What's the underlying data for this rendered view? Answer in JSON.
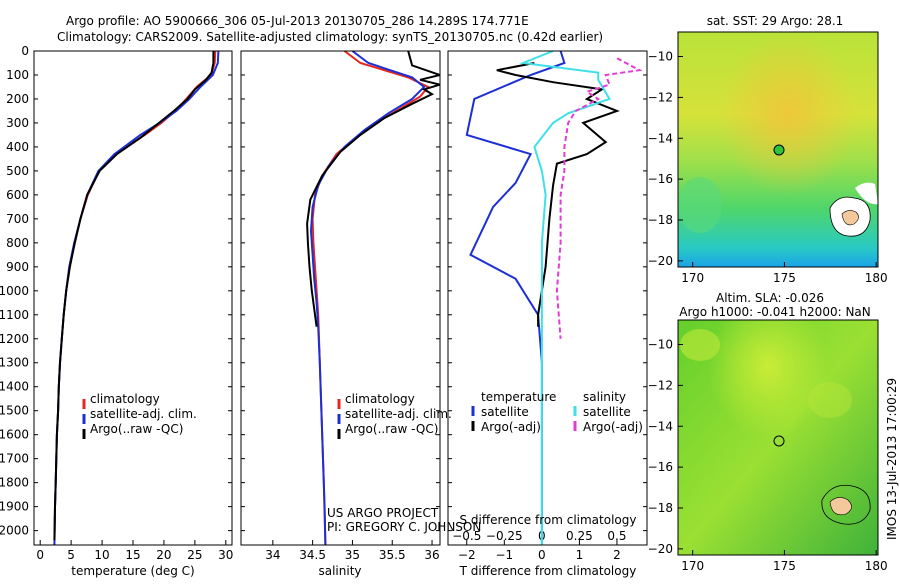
{
  "header": {
    "line1": "Argo profile: AO 5900666_306 05-Jul-2013 20130705_286 14.289S 174.771E",
    "line2": "Climatology: CARS2009. Satellite-adjusted climatology: synTS_20130705.nc (0.42d earlier)"
  },
  "colors": {
    "red": "#e8261e",
    "blue": "#1c2fd6",
    "black": "#000000",
    "cyan": "#3fe0e8",
    "magenta": "#e23bd6"
  },
  "chart_data": [
    {
      "type": "line",
      "id": "temperature",
      "xlabel": "temperature (deg C)",
      "xlim": [
        -1,
        31
      ],
      "ylim": [
        0,
        2060
      ],
      "xticks": [
        "0",
        "5",
        "10",
        "15",
        "20",
        "25",
        "30"
      ],
      "yticks": [
        "0",
        "100",
        "200",
        "300",
        "400",
        "500",
        "600",
        "700",
        "800",
        "900",
        "1000",
        "1100",
        "1200",
        "1300",
        "1400",
        "1500",
        "1600",
        "1700",
        "1800",
        "1900",
        "2000"
      ],
      "legend": [
        "climatology",
        "satellite-adj. clim.",
        "Argo(..raw -QC)"
      ],
      "series": [
        {
          "name": "climatology",
          "color": "red",
          "pts": [
            [
              28.3,
              0
            ],
            [
              28.2,
              50
            ],
            [
              27.6,
              100
            ],
            [
              25.3,
              150
            ],
            [
              23.6,
              200
            ],
            [
              21.8,
              250
            ],
            [
              19.6,
              300
            ],
            [
              16.9,
              350
            ],
            [
              12.3,
              430
            ],
            [
              9.5,
              500
            ],
            [
              7.7,
              600
            ],
            [
              6.5,
              700
            ],
            [
              5.6,
              800
            ],
            [
              4.7,
              900
            ],
            [
              4.2,
              1000
            ],
            [
              3.8,
              1100
            ],
            [
              3.5,
              1200
            ],
            [
              3.2,
              1300
            ],
            [
              3.0,
              1400
            ],
            [
              2.9,
              1500
            ],
            [
              2.7,
              1600
            ],
            [
              2.6,
              1700
            ],
            [
              2.5,
              1800
            ],
            [
              2.4,
              1900
            ],
            [
              2.3,
              2060
            ]
          ]
        },
        {
          "name": "satellite-adj. clim.",
          "color": "blue",
          "pts": [
            [
              28.8,
              0
            ],
            [
              28.7,
              50
            ],
            [
              27.9,
              100
            ],
            [
              25.9,
              150
            ],
            [
              24.1,
              200
            ],
            [
              22.0,
              250
            ],
            [
              19.3,
              300
            ],
            [
              16.2,
              350
            ],
            [
              12.0,
              430
            ],
            [
              9.4,
              500
            ],
            [
              7.6,
              600
            ],
            [
              6.5,
              700
            ],
            [
              5.5,
              800
            ],
            [
              4.7,
              900
            ],
            [
              4.2,
              1000
            ],
            [
              3.8,
              1100
            ],
            [
              3.5,
              1200
            ],
            [
              3.2,
              1300
            ],
            [
              3.0,
              1400
            ],
            [
              2.9,
              1500
            ],
            [
              2.7,
              1600
            ],
            [
              2.6,
              1700
            ],
            [
              2.5,
              1800
            ],
            [
              2.4,
              1900
            ],
            [
              2.3,
              2060
            ]
          ]
        },
        {
          "name": "Argo",
          "color": "black",
          "pts": [
            [
              28.0,
              0
            ],
            [
              28.0,
              50
            ],
            [
              27.7,
              90
            ],
            [
              26.8,
              120
            ],
            [
              25.0,
              160
            ],
            [
              23.8,
              200
            ],
            [
              21.6,
              250
            ],
            [
              19.2,
              300
            ],
            [
              16.3,
              360
            ],
            [
              12.4,
              430
            ],
            [
              9.6,
              500
            ],
            [
              7.6,
              600
            ],
            [
              6.5,
              700
            ],
            [
              5.6,
              800
            ],
            [
              4.8,
              900
            ],
            [
              4.2,
              1000
            ],
            [
              3.8,
              1100
            ],
            [
              3.5,
              1200
            ],
            [
              3.2,
              1300
            ],
            [
              3.0,
              1400
            ],
            [
              2.9,
              1500
            ],
            [
              2.7,
              1600
            ],
            [
              2.6,
              1700
            ],
            [
              2.5,
              1800
            ],
            [
              2.4,
              1900
            ],
            [
              2.3,
              2040
            ]
          ]
        }
      ]
    },
    {
      "type": "line",
      "id": "salinity",
      "xlabel": "salinity",
      "xlim": [
        33.6,
        36.1
      ],
      "ylim": [
        0,
        2060
      ],
      "xticks": [
        "34",
        "34.5",
        "35",
        "35.5",
        "36"
      ],
      "legend": [
        "climatology",
        "satellite-adj. clim.",
        "Argo(..raw -QC)"
      ],
      "series": [
        {
          "name": "climatology",
          "color": "red",
          "pts": [
            [
              34.9,
              0
            ],
            [
              35.1,
              50
            ],
            [
              35.7,
              110
            ],
            [
              35.95,
              150
            ],
            [
              35.85,
              190
            ],
            [
              35.6,
              240
            ],
            [
              35.3,
              300
            ],
            [
              35.05,
              360
            ],
            [
              34.8,
              430
            ],
            [
              34.62,
              520
            ],
            [
              34.53,
              600
            ],
            [
              34.5,
              700
            ],
            [
              34.51,
              800
            ],
            [
              34.53,
              900
            ],
            [
              34.55,
              1000
            ],
            [
              34.57,
              1100
            ],
            [
              34.58,
              1200
            ],
            [
              34.6,
              1400
            ],
            [
              34.62,
              1600
            ],
            [
              34.64,
              1800
            ],
            [
              34.66,
              2060
            ]
          ]
        },
        {
          "name": "satellite-adj. clim.",
          "color": "blue",
          "pts": [
            [
              35.0,
              0
            ],
            [
              35.2,
              50
            ],
            [
              35.75,
              110
            ],
            [
              35.9,
              150
            ],
            [
              35.75,
              200
            ],
            [
              35.45,
              260
            ],
            [
              35.15,
              330
            ],
            [
              34.9,
              400
            ],
            [
              34.7,
              480
            ],
            [
              34.57,
              560
            ],
            [
              34.5,
              650
            ],
            [
              34.48,
              750
            ],
            [
              34.5,
              850
            ],
            [
              34.52,
              950
            ],
            [
              34.55,
              1050
            ],
            [
              34.57,
              1150
            ],
            [
              34.59,
              1300
            ],
            [
              34.61,
              1500
            ],
            [
              34.63,
              1700
            ],
            [
              34.65,
              1900
            ],
            [
              34.66,
              2060
            ]
          ]
        },
        {
          "name": "Argo",
          "color": "black",
          "pts": [
            [
              35.7,
              0
            ],
            [
              35.75,
              60
            ],
            [
              36.1,
              100
            ],
            [
              35.85,
              120
            ],
            [
              36.1,
              140
            ],
            [
              35.9,
              160
            ],
            [
              36.0,
              180
            ],
            [
              35.75,
              220
            ],
            [
              35.4,
              280
            ],
            [
              35.1,
              350
            ],
            [
              34.85,
              420
            ],
            [
              34.62,
              520
            ],
            [
              34.47,
              620
            ],
            [
              34.43,
              720
            ],
            [
              34.44,
              800
            ],
            [
              34.46,
              900
            ],
            [
              34.49,
              1000
            ],
            [
              34.53,
              1100
            ],
            [
              34.55,
              1150
            ]
          ]
        }
      ]
    },
    {
      "type": "line",
      "id": "difference",
      "xlabel": "T difference from climatology",
      "xlabel_top": "S difference from climatology",
      "xlim": [
        -2.5,
        2.8
      ],
      "ylim": [
        0,
        2060
      ],
      "xticks": [
        "−2",
        "−1",
        "0",
        "1",
        "2"
      ],
      "xticks_top": [
        "−0.5",
        "−0.25",
        "0",
        "0.25",
        "0.5"
      ],
      "legend_left_title": "temperature",
      "legend_right_title": "salinity",
      "legend_left": [
        "satellite",
        "Argo(-adj)"
      ],
      "legend_right": [
        "satellite",
        "Argo(-adj)"
      ],
      "series": [
        {
          "name": "T satellite",
          "color": "blue",
          "pts": [
            [
              0.5,
              0
            ],
            [
              0.6,
              50
            ],
            [
              -0.3,
              100
            ],
            [
              -1.8,
              200
            ],
            [
              -2.0,
              350
            ],
            [
              -0.3,
              430
            ],
            [
              -0.7,
              550
            ],
            [
              -1.3,
              650
            ],
            [
              -1.9,
              850
            ],
            [
              -0.7,
              950
            ],
            [
              -0.1,
              1100
            ],
            [
              0,
              1300
            ],
            [
              0,
              2060
            ]
          ]
        },
        {
          "name": "T Argo",
          "color": "black",
          "pts": [
            [
              -0.2,
              50
            ],
            [
              -1.2,
              80
            ],
            [
              -0.7,
              100
            ],
            [
              0.3,
              130
            ],
            [
              1.6,
              160
            ],
            [
              1.2,
              200
            ],
            [
              2.0,
              250
            ],
            [
              1.1,
              300
            ],
            [
              1.7,
              380
            ],
            [
              1.2,
              430
            ],
            [
              0.4,
              470
            ],
            [
              0.3,
              560
            ],
            [
              0.2,
              700
            ],
            [
              0.1,
              900
            ],
            [
              -0.1,
              1100
            ],
            [
              -0.1,
              1150
            ]
          ]
        },
        {
          "name": "S satellite",
          "color": "cyan",
          "pts": [
            [
              0.3,
              0
            ],
            [
              -0.5,
              50
            ],
            [
              1.5,
              90
            ],
            [
              1.5,
              120
            ],
            [
              1.8,
              200
            ],
            [
              0.7,
              260
            ],
            [
              0.3,
              300
            ],
            [
              0.1,
              340
            ],
            [
              -0.2,
              400
            ],
            [
              0,
              500
            ],
            [
              0.1,
              600
            ],
            [
              0,
              800
            ],
            [
              0,
              2060
            ]
          ]
        },
        {
          "name": "S Argo",
          "color": "magenta",
          "pts": [
            [
              2.0,
              30
            ],
            [
              2.6,
              80
            ],
            [
              1.7,
              100
            ],
            [
              1.8,
              140
            ],
            [
              1.2,
              170
            ],
            [
              1.5,
              200
            ],
            [
              0.9,
              250
            ],
            [
              0.7,
              300
            ],
            [
              0.6,
              400
            ],
            [
              0.6,
              500
            ],
            [
              0.5,
              600
            ],
            [
              0.5,
              700
            ],
            [
              0.5,
              800
            ],
            [
              0.4,
              1000
            ],
            [
              0.5,
              1200
            ]
          ]
        }
      ]
    }
  ],
  "sst_map": {
    "title": "sat. SST: 29 Argo: 28.1",
    "xticks": [
      "170",
      "175",
      "180"
    ],
    "yticks": [
      "−10",
      "−12",
      "−14",
      "−16",
      "−18",
      "−20"
    ]
  },
  "sla_map": {
    "title1": "Altim. SLA: -0.026",
    "title2": "Argo h1000: -0.041 h2000: NaN",
    "xticks": [
      "170",
      "175",
      "180"
    ],
    "yticks": [
      "−10",
      "−12",
      "−14",
      "−16",
      "−18",
      "−20"
    ]
  },
  "footer": {
    "project": "US ARGO PROJECT",
    "pi": "PI: GREGORY C. JOHNSON",
    "stamp": "IMOS 13-Jul-2013 17:00:29"
  }
}
